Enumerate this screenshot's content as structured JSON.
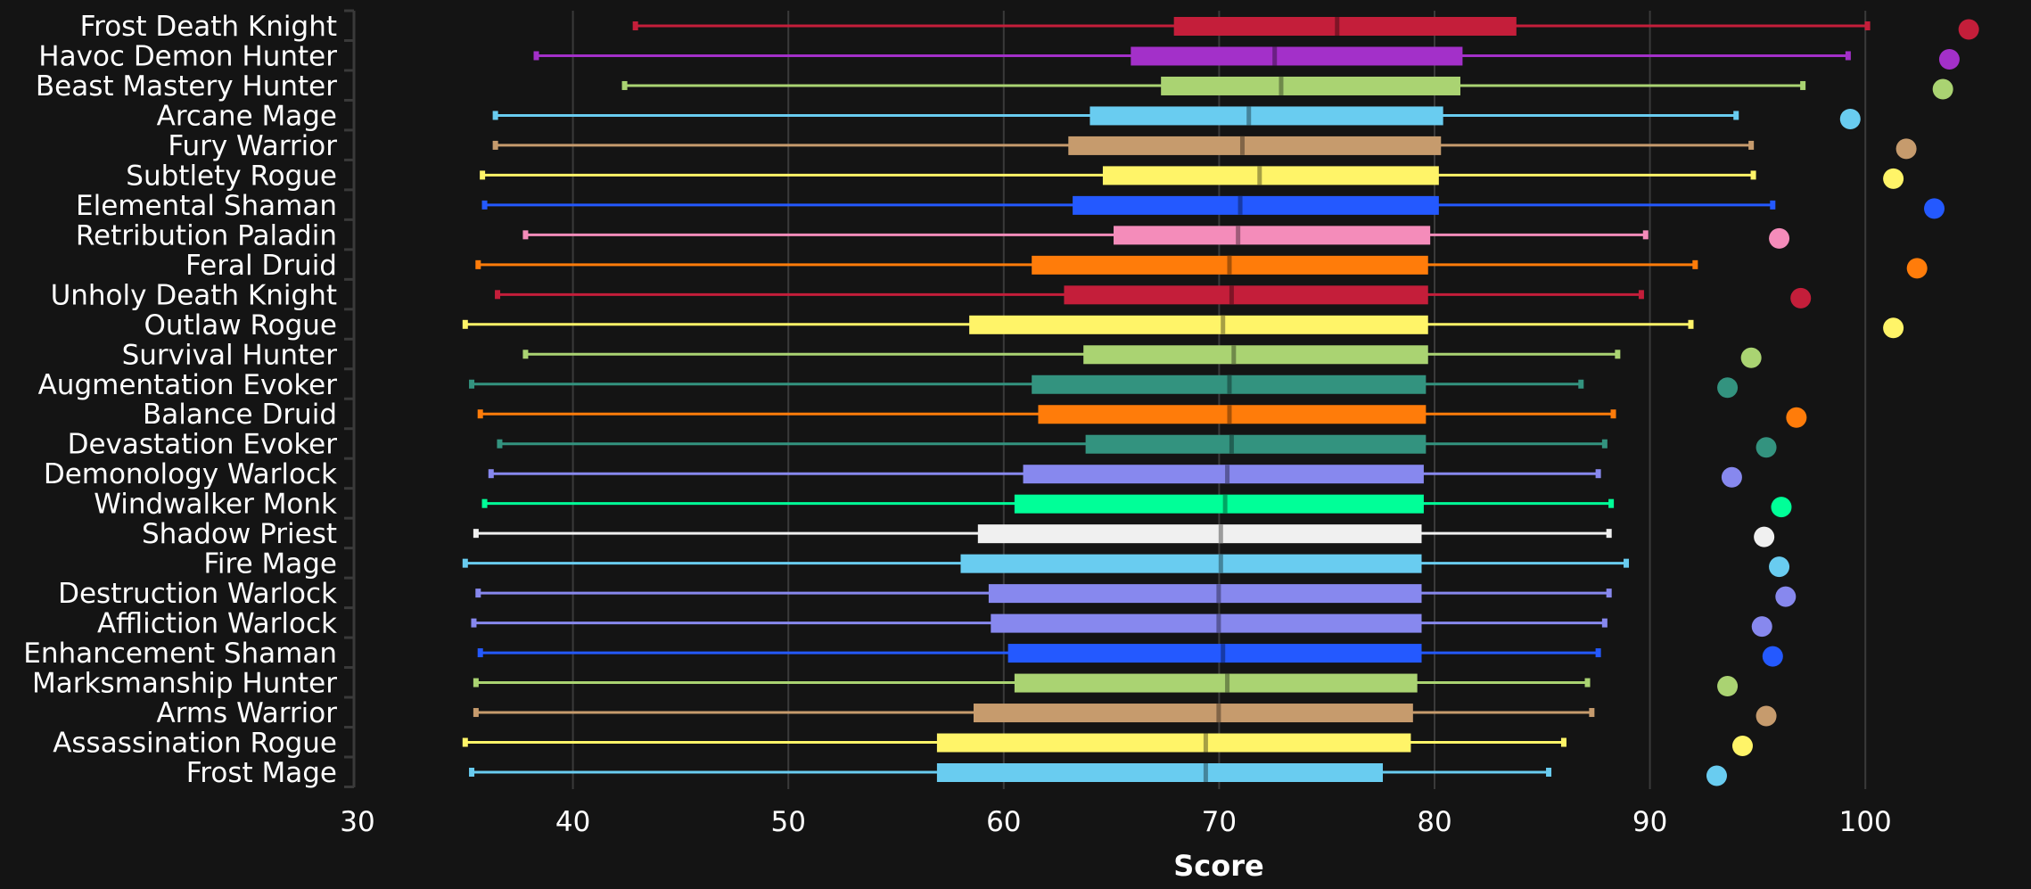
{
  "chart_data": {
    "type": "boxplot",
    "title": "",
    "xlabel": "Score",
    "ylabel": "",
    "xlim": [
      30,
      105
    ],
    "xticks": [
      "30",
      "40",
      "50",
      "60",
      "70",
      "80",
      "90",
      "100"
    ],
    "grid": true,
    "legend": "none",
    "series": [
      {
        "name": "Frost Death Knight",
        "color": "#C41E3A",
        "min": 42.9,
        "q1": 67.9,
        "median": 75.5,
        "q3": 83.8,
        "max": 100.1,
        "outlier": 104.8
      },
      {
        "name": "Havoc Demon Hunter",
        "color": "#A330C9",
        "min": 38.3,
        "q1": 65.9,
        "median": 72.6,
        "q3": 81.3,
        "max": 99.2,
        "outlier": 103.9
      },
      {
        "name": "Beast Mastery Hunter",
        "color": "#AAD372",
        "min": 42.4,
        "q1": 67.3,
        "median": 72.9,
        "q3": 81.2,
        "max": 97.1,
        "outlier": 103.6
      },
      {
        "name": "Arcane Mage",
        "color": "#69CCF0",
        "min": 36.4,
        "q1": 64.0,
        "median": 71.4,
        "q3": 80.4,
        "max": 94.0,
        "outlier": 99.3
      },
      {
        "name": "Fury Warrior",
        "color": "#C69B6D",
        "min": 36.4,
        "q1": 63.0,
        "median": 71.1,
        "q3": 80.3,
        "max": 94.7,
        "outlier": 101.9
      },
      {
        "name": "Subtlety Rogue",
        "color": "#FFF468",
        "min": 35.8,
        "q1": 64.6,
        "median": 71.9,
        "q3": 80.2,
        "max": 94.8,
        "outlier": 101.3
      },
      {
        "name": "Elemental Shaman",
        "color": "#2459FF",
        "min": 35.9,
        "q1": 63.2,
        "median": 71.0,
        "q3": 80.2,
        "max": 95.7,
        "outlier": 103.2
      },
      {
        "name": "Retribution Paladin",
        "color": "#F48CBA",
        "min": 37.8,
        "q1": 65.1,
        "median": 70.9,
        "q3": 79.8,
        "max": 89.8,
        "outlier": 96.0
      },
      {
        "name": "Feral Druid",
        "color": "#FF7C0A",
        "min": 35.6,
        "q1": 61.3,
        "median": 70.5,
        "q3": 79.7,
        "max": 92.1,
        "outlier": 102.4
      },
      {
        "name": "Unholy Death Knight",
        "color": "#C41E3A",
        "min": 36.5,
        "q1": 62.8,
        "median": 70.6,
        "q3": 79.7,
        "max": 89.6,
        "outlier": 97.0
      },
      {
        "name": "Outlaw Rogue",
        "color": "#FFF468",
        "min": 35.0,
        "q1": 58.4,
        "median": 70.2,
        "q3": 79.7,
        "max": 91.9,
        "outlier": 101.3
      },
      {
        "name": "Survival Hunter",
        "color": "#AAD372",
        "min": 37.8,
        "q1": 63.7,
        "median": 70.7,
        "q3": 79.7,
        "max": 88.5,
        "outlier": 94.7
      },
      {
        "name": "Augmentation Evoker",
        "color": "#33937F",
        "min": 35.3,
        "q1": 61.3,
        "median": 70.5,
        "q3": 79.6,
        "max": 86.8,
        "outlier": 93.6
      },
      {
        "name": "Balance Druid",
        "color": "#FF7C0A",
        "min": 35.7,
        "q1": 61.6,
        "median": 70.5,
        "q3": 79.6,
        "max": 88.3,
        "outlier": 96.8
      },
      {
        "name": "Devastation Evoker",
        "color": "#33937F",
        "min": 36.6,
        "q1": 63.8,
        "median": 70.6,
        "q3": 79.6,
        "max": 87.9,
        "outlier": 95.4
      },
      {
        "name": "Demonology Warlock",
        "color": "#8788EE",
        "min": 36.2,
        "q1": 60.9,
        "median": 70.4,
        "q3": 79.5,
        "max": 87.6,
        "outlier": 93.8
      },
      {
        "name": "Windwalker Monk",
        "color": "#00FF98",
        "min": 35.9,
        "q1": 60.5,
        "median": 70.3,
        "q3": 79.5,
        "max": 88.2,
        "outlier": 96.1
      },
      {
        "name": "Shadow Priest",
        "color": "#F0F0F0",
        "min": 35.5,
        "q1": 58.8,
        "median": 70.1,
        "q3": 79.4,
        "max": 88.1,
        "outlier": 95.3
      },
      {
        "name": "Fire Mage",
        "color": "#69CCF0",
        "min": 35.0,
        "q1": 58.0,
        "median": 70.1,
        "q3": 79.4,
        "max": 88.9,
        "outlier": 96.0
      },
      {
        "name": "Destruction Warlock",
        "color": "#8788EE",
        "min": 35.6,
        "q1": 59.3,
        "median": 70.0,
        "q3": 79.4,
        "max": 88.1,
        "outlier": 96.3
      },
      {
        "name": "Affliction Warlock",
        "color": "#8788EE",
        "min": 35.4,
        "q1": 59.4,
        "median": 70.0,
        "q3": 79.4,
        "max": 87.9,
        "outlier": 95.2
      },
      {
        "name": "Enhancement Shaman",
        "color": "#2459FF",
        "min": 35.7,
        "q1": 60.2,
        "median": 70.2,
        "q3": 79.4,
        "max": 87.6,
        "outlier": 95.7
      },
      {
        "name": "Marksmanship Hunter",
        "color": "#AAD372",
        "min": 35.5,
        "q1": 60.5,
        "median": 70.4,
        "q3": 79.2,
        "max": 87.1,
        "outlier": 93.6
      },
      {
        "name": "Arms Warrior",
        "color": "#C69B6D",
        "min": 35.5,
        "q1": 58.6,
        "median": 70.0,
        "q3": 79.0,
        "max": 87.3,
        "outlier": 95.4
      },
      {
        "name": "Assassination Rogue",
        "color": "#FFF468",
        "min": 35.0,
        "q1": 56.9,
        "median": 69.4,
        "q3": 78.9,
        "max": 86.0,
        "outlier": 94.3
      },
      {
        "name": "Frost Mage",
        "color": "#69CCF0",
        "min": 35.3,
        "q1": 56.9,
        "median": 69.4,
        "q3": 77.6,
        "max": 85.3,
        "outlier": 93.1
      }
    ]
  },
  "colors": {
    "background": "#141414",
    "grid": "#3a3a3a",
    "text": "#ffffff"
  }
}
